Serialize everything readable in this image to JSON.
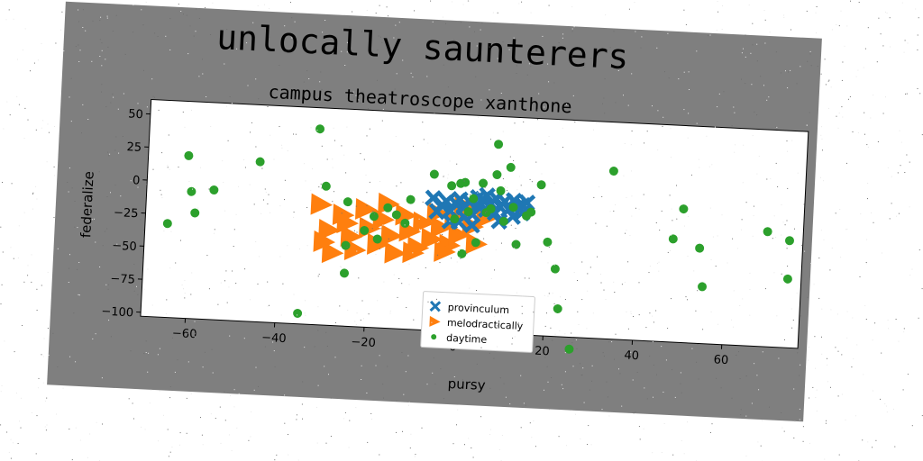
{
  "chart_data": {
    "type": "scatter",
    "title": "unlocally saunterers",
    "subtitle": "campus theatroscope xanthone",
    "xlabel": "pursy",
    "ylabel": "federalize",
    "xlim": [
      -70,
      77
    ],
    "ylim": [
      -103,
      61
    ],
    "xticks": [
      -60,
      -40,
      -20,
      0,
      20,
      40,
      60
    ],
    "yticks": [
      50,
      25,
      0,
      -25,
      -50,
      -75,
      -100
    ],
    "xtick_labels": [
      "−60",
      "−40",
      "−20",
      "0",
      "20",
      "40",
      "60"
    ],
    "ytick_labels": [
      "50",
      "25",
      "0",
      "−25",
      "−50",
      "−75",
      "−100"
    ],
    "grid": false,
    "legend_position": "bottom-center",
    "series": [
      {
        "name": "provinculum",
        "marker": "x",
        "color": "#1f77b4",
        "points": [
          [
            -6,
            -3
          ],
          [
            -4,
            -8
          ],
          [
            -3,
            -5
          ],
          [
            -2,
            -12
          ],
          [
            -1,
            -6
          ],
          [
            0,
            -3
          ],
          [
            1,
            -9
          ],
          [
            2,
            -4
          ],
          [
            3,
            -14
          ],
          [
            4,
            -7
          ],
          [
            5,
            -2
          ],
          [
            6,
            -10
          ],
          [
            7,
            -5
          ],
          [
            8,
            -12
          ],
          [
            9,
            -7
          ],
          [
            10,
            -3
          ],
          [
            11,
            -9
          ],
          [
            12,
            -14
          ],
          [
            13,
            -6
          ],
          [
            14,
            -11
          ],
          [
            6,
            1
          ],
          [
            8,
            -1
          ],
          [
            -2,
            -20
          ],
          [
            0,
            -20
          ],
          [
            3,
            -22
          ],
          [
            12,
            -2
          ],
          [
            14,
            -5
          ],
          [
            15,
            -3
          ],
          [
            9,
            -18
          ],
          [
            1,
            -16
          ],
          [
            -5,
            -13
          ],
          [
            4,
            -1
          ]
        ]
      },
      {
        "name": "melodractically",
        "marker": ">",
        "color": "#ff7f0e",
        "points": [
          [
            -31,
            -12
          ],
          [
            -29,
            -31
          ],
          [
            -28,
            -48
          ],
          [
            -26,
            -19
          ],
          [
            -24,
            -35
          ],
          [
            -23,
            -45
          ],
          [
            -21,
            -14
          ],
          [
            -20,
            -28
          ],
          [
            -18,
            -40
          ],
          [
            -17,
            -21
          ],
          [
            -15,
            -33
          ],
          [
            -14,
            -46
          ],
          [
            -12,
            -17
          ],
          [
            -11,
            -29
          ],
          [
            -9,
            -41
          ],
          [
            -8,
            -22
          ],
          [
            -6,
            -34
          ],
          [
            -5,
            -14
          ],
          [
            -4,
            -25
          ],
          [
            -2,
            -38
          ],
          [
            -1,
            -18
          ],
          [
            0,
            -30
          ],
          [
            2,
            -12
          ],
          [
            3,
            -23
          ],
          [
            4,
            -36
          ],
          [
            6,
            -16
          ],
          [
            -30,
            -40
          ],
          [
            -16,
            -9
          ],
          [
            -3,
            -43
          ],
          [
            1,
            -8
          ],
          [
            -25,
            -25
          ],
          [
            -10,
            -45
          ]
        ]
      },
      {
        "name": "daytime",
        "marker": "o",
        "color": "#2ca02c",
        "points": [
          [
            -65,
            -32
          ],
          [
            -61,
            20
          ],
          [
            -60,
            -7
          ],
          [
            -59,
            -23
          ],
          [
            -55,
            -5
          ],
          [
            -45,
            18
          ],
          [
            -35,
            -95
          ],
          [
            -32,
            45
          ],
          [
            -30,
            2
          ],
          [
            -25,
            -9
          ],
          [
            -25,
            -42
          ],
          [
            -25,
            -63
          ],
          [
            -21,
            -30
          ],
          [
            -19,
            -19
          ],
          [
            -18,
            -36
          ],
          [
            -16,
            -12
          ],
          [
            -14,
            -17
          ],
          [
            -12,
            -23
          ],
          [
            -11,
            -5
          ],
          [
            -6,
            15
          ],
          [
            -2,
            7
          ],
          [
            -1,
            -18
          ],
          [
            0,
            9
          ],
          [
            1,
            10
          ],
          [
            1,
            -44
          ],
          [
            2,
            -12
          ],
          [
            3,
            -2
          ],
          [
            4,
            -35
          ],
          [
            5,
            10
          ],
          [
            6,
            -12
          ],
          [
            7,
            -9
          ],
          [
            8,
            17
          ],
          [
            8,
            40
          ],
          [
            9,
            5
          ],
          [
            10,
            -18
          ],
          [
            11,
            23
          ],
          [
            12,
            -7
          ],
          [
            13,
            -35
          ],
          [
            15,
            -13
          ],
          [
            16,
            -10
          ],
          [
            18,
            11
          ],
          [
            20,
            -32
          ],
          [
            22,
            -52
          ],
          [
            23,
            -82
          ],
          [
            26,
            -112
          ],
          [
            34,
            24
          ],
          [
            48,
            -25
          ],
          [
            50,
            -2
          ],
          [
            54,
            -31
          ],
          [
            55,
            -60
          ],
          [
            69,
            -16
          ],
          [
            74,
            -22
          ],
          [
            74,
            -51
          ]
        ]
      }
    ]
  }
}
